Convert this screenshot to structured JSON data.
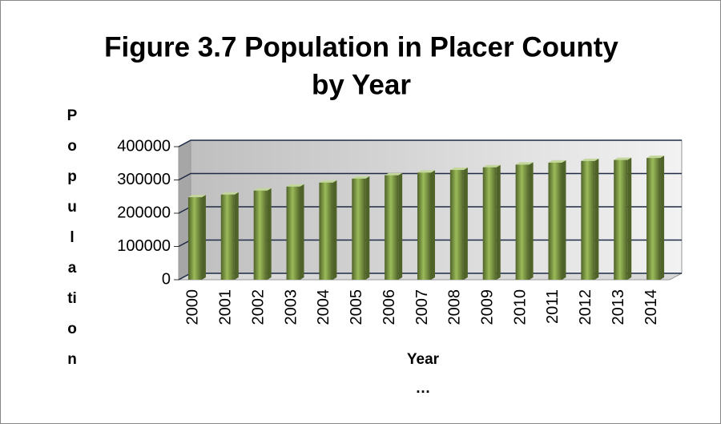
{
  "chart_data": {
    "type": "bar",
    "title": "Figure 3.7 Population in Placer County by Year",
    "xlabel": "Year",
    "xlabel_continuation": "…",
    "ylabel": "Population",
    "categories": [
      "2000",
      "2001",
      "2002",
      "2003",
      "2004",
      "2005",
      "2006",
      "2007",
      "2008",
      "2009",
      "2010",
      "2011",
      "2012",
      "2013",
      "2014"
    ],
    "values": [
      248000,
      256000,
      268000,
      280000,
      292000,
      304000,
      314000,
      322000,
      330000,
      338000,
      346000,
      352000,
      357000,
      360000,
      366000
    ],
    "color": "#77933c",
    "ylim": [
      0,
      400000
    ],
    "yticks": [
      0,
      100000,
      200000,
      300000,
      400000
    ],
    "grid": true
  }
}
